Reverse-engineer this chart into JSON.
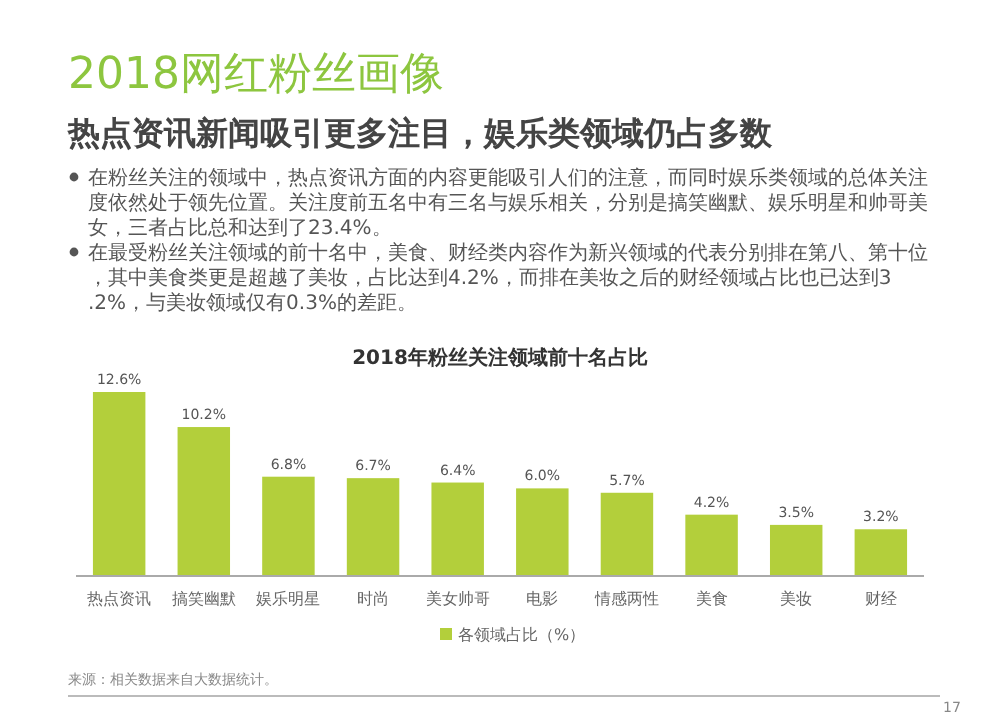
{
  "chart_data": {
    "type": "bar",
    "title": "2018网红粉丝画像",
    "subtitle": "热点资讯新闻吸引更多注目，娱乐类领域仍占多数",
    "annotations": [
      "在粉丝关注的领域中，热点资讯方面的内容更能吸引人们的注意，而同时娱乐类领域的总体关注度依然处于领先位置。关注度前五名中有三名与娱乐相关，分别是搞笑幽默、娱乐明星和帅哥美女，三者占比总和达到了23.4%。",
      "在最受粉丝关注领域的前十名中，美食、财经类内容作为新兴领域的代表分别排在第八、第十位，其中美食类更是超越了美妆，占比达到4.2%，而排在美妆之后的财经领域占比也已达到3.2%，与美妆领域仅有0.3%的差距。",
      "2018年粉丝关注领域前十名占比",
      "来源：相关数据来自大数据统计。",
      "17"
    ],
    "categories": [
      "热点资讯",
      "搞笑幽默",
      "娱乐明星",
      "时尚",
      "美女帅哥",
      "电影",
      "情感两性",
      "美食",
      "美妆",
      "财经"
    ],
    "series": [
      {
        "name": "各领域占比（%）",
        "color": "#b3cf3b",
        "values": [
          12.6,
          10.2,
          6.8,
          6.7,
          6.4,
          6.0,
          5.7,
          4.2,
          3.5,
          3.2
        ],
        "value_labels": [
          "12.6%",
          "10.2%",
          "6.8%",
          "6.7%",
          "6.4%",
          "6.0%",
          "5.7%",
          "4.2%",
          "3.5%",
          "3.2%"
        ]
      }
    ],
    "legend": "bottom"
  }
}
